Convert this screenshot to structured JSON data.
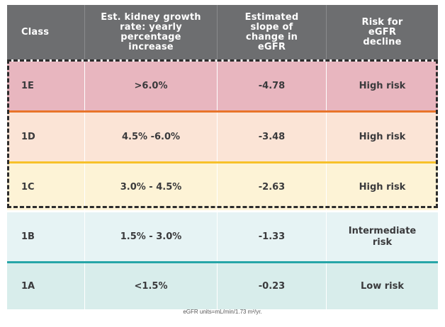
{
  "header": {
    "col1": "Class",
    "col2": "Est. kidney growth rate: yearly percentage increase",
    "col3": "Estimated slope of change in eGFR",
    "col4": "Risk for eGFR decline"
  },
  "rows": [
    {
      "class": "1E",
      "growth": ">6.0%",
      "slope": "-4.78",
      "risk": "High risk"
    },
    {
      "class": "1D",
      "growth": "4.5% -6.0%",
      "slope": "-3.48",
      "risk": "High risk"
    },
    {
      "class": "1C",
      "growth": "3.0% - 4.5%",
      "slope": "-2.63",
      "risk": "High risk"
    },
    {
      "class": "1B",
      "growth": "1.5% - 3.0%",
      "slope": "-1.33",
      "risk": "Intermediate risk"
    },
    {
      "class": "1A",
      "growth": "<1.5%",
      "slope": "-0.23",
      "risk": "Low risk"
    }
  ],
  "colors": {
    "header_bg": "#6d6e70",
    "row_1E": "#e8b6bf",
    "row_1D": "#fbe4d6",
    "row_1C": "#fdf3d6",
    "row_1B": "#e6f3f4",
    "row_1A": "#d8edeb",
    "separator_1E_1D": "#e8742a",
    "separator_1D_1C": "#f7c12a",
    "separator_1B_1A": "#27a6a8"
  },
  "footnote": "eGFR units=mL/min/1.73 m²/yr."
}
